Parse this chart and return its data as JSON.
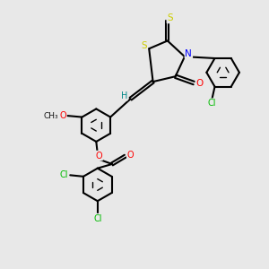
{
  "bg_color": "#e8e8e8",
  "atom_colors": {
    "S": "#cccc00",
    "N": "#0000ff",
    "O": "#ff0000",
    "Cl": "#00bb00",
    "C": "#000000",
    "H": "#008888"
  },
  "bond_color": "#000000",
  "figsize": [
    3.0,
    3.0
  ],
  "dpi": 100
}
